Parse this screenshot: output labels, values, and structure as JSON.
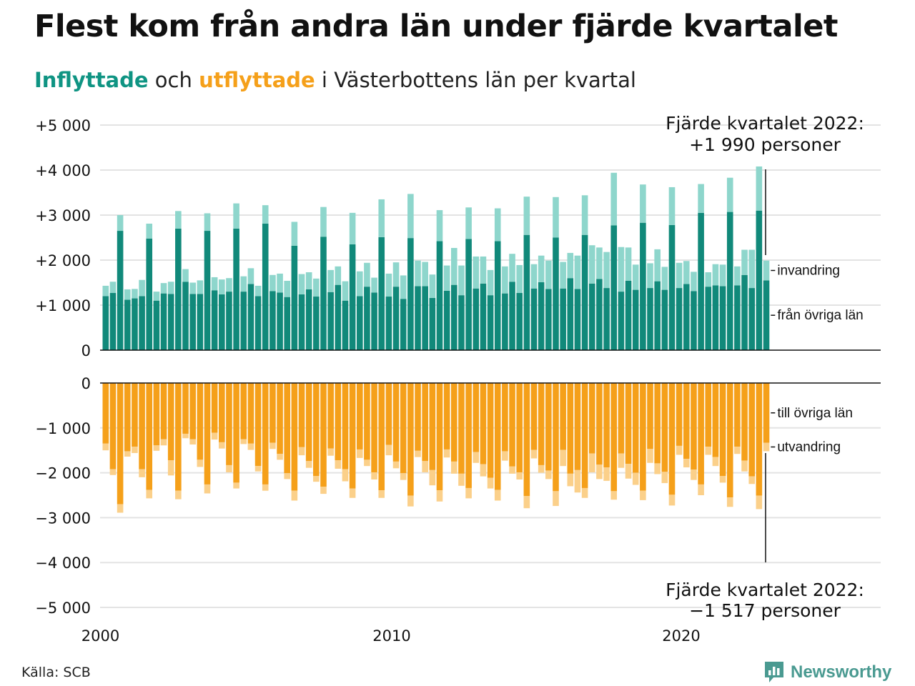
{
  "header": {
    "title": "Flest kom från andra län under fjärde kvartalet",
    "subtitle_in": "Inflyttade",
    "subtitle_and": " och ",
    "subtitle_out": "utflyttade",
    "subtitle_rest": " i Västerbottens län per kvartal"
  },
  "footer": {
    "source": "Källa: SCB",
    "brand": "Newsworthy"
  },
  "colors": {
    "inflow_domestic": "#11897a",
    "inflow_immigration": "#8ed6cc",
    "outflow_domestic": "#f5a01a",
    "outflow_emigration": "#fbd08a",
    "grid": "#e3e3e3",
    "axis": "#111111"
  },
  "chart_data": [
    {
      "type": "bar",
      "stacked": true,
      "panel": "inflyttade",
      "ylim": [
        0,
        5000
      ],
      "y_ticks": [
        0,
        1000,
        2000,
        3000,
        4000,
        5000
      ],
      "y_tick_labels": [
        "0",
        "+1 000",
        "+2 000",
        "+3 000",
        "+4 000",
        "+5 000"
      ],
      "x_ticks": [
        2000,
        2010,
        2020
      ],
      "x_tick_labels": [
        "2000",
        "2010",
        "2020"
      ],
      "start": "2000 Q1",
      "end": "2022 Q4",
      "series": [
        {
          "name": "från övriga län",
          "values": [
            1200,
            1270,
            2650,
            1120,
            1150,
            1200,
            2480,
            1100,
            1260,
            1250,
            2700,
            1520,
            1250,
            1250,
            2650,
            1330,
            1240,
            1300,
            2700,
            1300,
            1470,
            1200,
            2810,
            1310,
            1280,
            1180,
            2320,
            1240,
            1350,
            1190,
            2520,
            1290,
            1450,
            1100,
            2350,
            1200,
            1410,
            1280,
            2510,
            1190,
            1410,
            1140,
            2490,
            1420,
            1420,
            1160,
            2420,
            1320,
            1450,
            1220,
            2470,
            1370,
            1480,
            1220,
            2420,
            1260,
            1520,
            1270,
            2560,
            1370,
            1510,
            1360,
            2500,
            1370,
            1600,
            1360,
            2560,
            1480,
            1580,
            1380,
            2770,
            1300,
            1540,
            1340,
            2830,
            1380,
            1530,
            1340,
            2780,
            1380,
            1470,
            1310,
            3050,
            1410,
            1440,
            1420,
            3070,
            1440,
            1670,
            1380,
            3100,
            1550
          ]
        },
        {
          "name": "invandring",
          "values": [
            230,
            250,
            350,
            230,
            210,
            360,
            330,
            200,
            230,
            270,
            390,
            280,
            250,
            300,
            390,
            290,
            330,
            300,
            560,
            340,
            350,
            230,
            410,
            360,
            420,
            360,
            530,
            450,
            380,
            400,
            660,
            490,
            410,
            430,
            700,
            550,
            530,
            330,
            840,
            510,
            540,
            520,
            980,
            570,
            540,
            520,
            690,
            560,
            820,
            660,
            700,
            710,
            600,
            560,
            730,
            600,
            620,
            620,
            850,
            540,
            590,
            630,
            900,
            590,
            560,
            740,
            880,
            850,
            700,
            800,
            1170,
            990,
            740,
            560,
            850,
            550,
            710,
            510,
            840,
            560,
            510,
            430,
            640,
            320,
            470,
            480,
            760,
            420,
            560,
            850,
            980,
            440
          ]
        }
      ]
    },
    {
      "type": "bar",
      "stacked": true,
      "panel": "utflyttade",
      "ylim": [
        -5000,
        0
      ],
      "y_ticks": [
        0,
        -1000,
        -2000,
        -3000,
        -4000,
        -5000
      ],
      "y_tick_labels": [
        "0",
        "−1 000",
        "−2 000",
        "−3 000",
        "−4 000",
        "−5 000"
      ],
      "start": "2000 Q1",
      "end": "2022 Q4",
      "series": [
        {
          "name": "till övriga län",
          "values": [
            -1350,
            -1920,
            -2700,
            -1520,
            -1420,
            -1920,
            -2380,
            -1390,
            -1250,
            -1720,
            -2400,
            -1130,
            -1250,
            -1710,
            -2260,
            -1110,
            -1320,
            -1830,
            -2220,
            -1250,
            -1350,
            -1850,
            -2260,
            -1330,
            -1580,
            -2010,
            -2400,
            -1430,
            -1740,
            -2070,
            -2310,
            -1460,
            -1720,
            -1920,
            -2350,
            -1480,
            -1710,
            -1990,
            -2390,
            -1380,
            -1750,
            -2010,
            -2510,
            -1510,
            -1740,
            -1940,
            -2390,
            -1480,
            -1750,
            -2020,
            -2340,
            -1540,
            -1810,
            -2110,
            -2380,
            -1520,
            -1860,
            -1990,
            -2520,
            -1490,
            -1830,
            -1950,
            -2410,
            -1490,
            -2020,
            -1940,
            -2340,
            -1570,
            -1820,
            -1880,
            -2410,
            -1570,
            -1800,
            -2000,
            -2400,
            -1470,
            -1790,
            -1980,
            -2490,
            -1400,
            -1690,
            -1930,
            -2260,
            -1420,
            -1650,
            -2070,
            -2550,
            -1420,
            -1730,
            -2080,
            -2510,
            -1330
          ]
        },
        {
          "name": "utvandring",
          "values": [
            -150,
            -130,
            -190,
            -120,
            -140,
            -180,
            -190,
            -120,
            -140,
            -340,
            -190,
            -100,
            -120,
            -160,
            -200,
            -150,
            -140,
            -160,
            -130,
            -110,
            -140,
            -120,
            -140,
            -140,
            -130,
            -130,
            -220,
            -180,
            -150,
            -130,
            -160,
            -160,
            -190,
            -270,
            -210,
            -190,
            -140,
            -160,
            -170,
            -230,
            -150,
            -150,
            -240,
            -140,
            -250,
            -340,
            -250,
            -180,
            -270,
            -270,
            -230,
            -240,
            -270,
            -240,
            -240,
            -210,
            -160,
            -160,
            -270,
            -190,
            -170,
            -190,
            -330,
            -360,
            -280,
            -500,
            -220,
            -420,
            -320,
            -300,
            -190,
            -320,
            -330,
            -270,
            -210,
            -310,
            -240,
            -250,
            -240,
            -200,
            -190,
            -230,
            -240,
            -180,
            -200,
            -150,
            -210,
            -160,
            -240,
            -170,
            -300,
            -190
          ]
        }
      ]
    }
  ],
  "annotations": {
    "top": {
      "line1": "Fjärde kvartalet 2022:",
      "line2": "+1 990 personer"
    },
    "bottom": {
      "line1": "Fjärde kvartalet 2022:",
      "line2": "−1 517 personer"
    }
  }
}
